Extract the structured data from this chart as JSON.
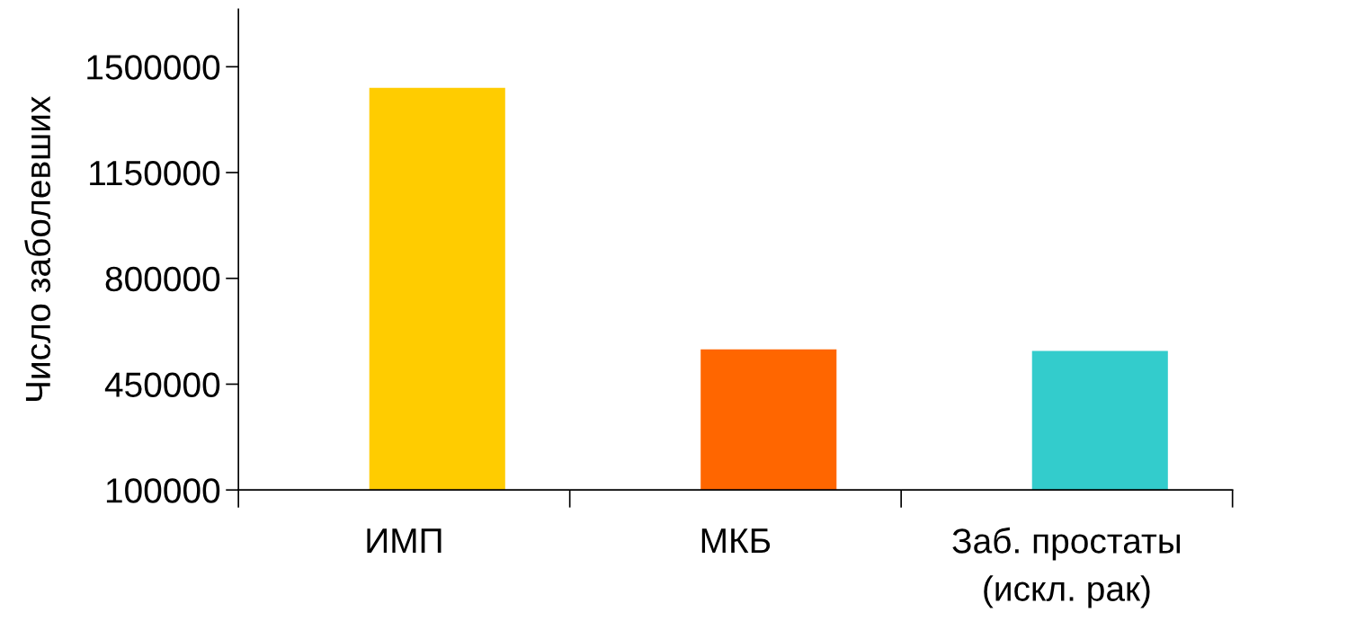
{
  "chart_data": {
    "type": "bar",
    "ylabel": "Число заболевших",
    "categories": [
      "ИМП",
      "МКБ",
      "Заб. простаты\n(искл. рак)"
    ],
    "values": [
      1430000,
      565000,
      560000
    ],
    "colors": [
      "#ffcc00",
      "#ff6600",
      "#33cccc"
    ],
    "ylim": [
      100000,
      1690000
    ],
    "yticks": [
      100000,
      450000,
      800000,
      1150000,
      1500000
    ],
    "grid": false,
    "legend": false
  }
}
